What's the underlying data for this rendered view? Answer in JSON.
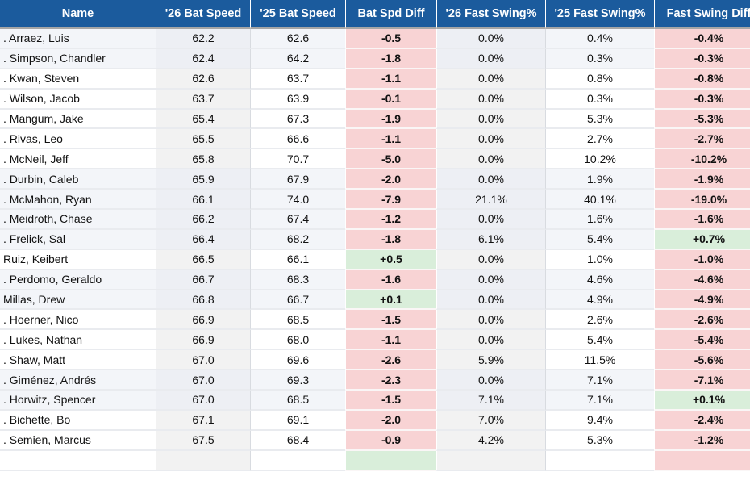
{
  "table": {
    "columns": [
      {
        "key": "name",
        "label": "Name"
      },
      {
        "key": "bs26",
        "label": "'26 Bat Speed"
      },
      {
        "key": "bs25",
        "label": "'25 Bat Speed"
      },
      {
        "key": "bsdiff",
        "label": "Bat Spd Diff"
      },
      {
        "key": "fs26",
        "label": "'26 Fast Swing%"
      },
      {
        "key": "fs25",
        "label": "'25 Fast Swing%"
      },
      {
        "key": "fsdiff",
        "label": "Fast Swing Diff"
      }
    ],
    "rows": [
      {
        "name": ". Arraez, Luis",
        "bs26": "62.2",
        "bs25": "62.6",
        "bsdiff": "-0.5",
        "fs26": "0.0%",
        "fs25": "0.4%",
        "fsdiff": "-0.4%",
        "shaded": true
      },
      {
        "name": ". Simpson, Chandler",
        "bs26": "62.4",
        "bs25": "64.2",
        "bsdiff": "-1.8",
        "fs26": "0.0%",
        "fs25": "0.3%",
        "fsdiff": "-0.3%",
        "shaded": true
      },
      {
        "name": ". Kwan, Steven",
        "bs26": "62.6",
        "bs25": "63.7",
        "bsdiff": "-1.1",
        "fs26": "0.0%",
        "fs25": "0.8%",
        "fsdiff": "-0.8%",
        "shaded": false
      },
      {
        "name": ". Wilson, Jacob",
        "bs26": "63.7",
        "bs25": "63.9",
        "bsdiff": "-0.1",
        "fs26": "0.0%",
        "fs25": "0.3%",
        "fsdiff": "-0.3%",
        "shaded": false
      },
      {
        "name": ". Mangum, Jake",
        "bs26": "65.4",
        "bs25": "67.3",
        "bsdiff": "-1.9",
        "fs26": "0.0%",
        "fs25": "5.3%",
        "fsdiff": "-5.3%",
        "shaded": false
      },
      {
        "name": ". Rivas, Leo",
        "bs26": "65.5",
        "bs25": "66.6",
        "bsdiff": "-1.1",
        "fs26": "0.0%",
        "fs25": "2.7%",
        "fsdiff": "-2.7%",
        "shaded": false
      },
      {
        "name": ". McNeil, Jeff",
        "bs26": "65.8",
        "bs25": "70.7",
        "bsdiff": "-5.0",
        "fs26": "0.0%",
        "fs25": "10.2%",
        "fsdiff": "-10.2%",
        "shaded": false
      },
      {
        "name": ". Durbin, Caleb",
        "bs26": "65.9",
        "bs25": "67.9",
        "bsdiff": "-2.0",
        "fs26": "0.0%",
        "fs25": "1.9%",
        "fsdiff": "-1.9%",
        "shaded": true
      },
      {
        "name": ". McMahon, Ryan",
        "bs26": "66.1",
        "bs25": "74.0",
        "bsdiff": "-7.9",
        "fs26": "21.1%",
        "fs25": "40.1%",
        "fsdiff": "-19.0%",
        "shaded": true
      },
      {
        "name": ". Meidroth, Chase",
        "bs26": "66.2",
        "bs25": "67.4",
        "bsdiff": "-1.2",
        "fs26": "0.0%",
        "fs25": "1.6%",
        "fsdiff": "-1.6%",
        "shaded": true
      },
      {
        "name": ". Frelick, Sal",
        "bs26": "66.4",
        "bs25": "68.2",
        "bsdiff": "-1.8",
        "fs26": "6.1%",
        "fs25": "5.4%",
        "fsdiff": "+0.7%",
        "shaded": true
      },
      {
        "name": "Ruiz, Keibert",
        "bs26": "66.5",
        "bs25": "66.1",
        "bsdiff": "+0.5",
        "fs26": "0.0%",
        "fs25": "1.0%",
        "fsdiff": "-1.0%",
        "shaded": false
      },
      {
        "name": ". Perdomo, Geraldo",
        "bs26": "66.7",
        "bs25": "68.3",
        "bsdiff": "-1.6",
        "fs26": "0.0%",
        "fs25": "4.6%",
        "fsdiff": "-4.6%",
        "shaded": true
      },
      {
        "name": "Millas, Drew",
        "bs26": "66.8",
        "bs25": "66.7",
        "bsdiff": "+0.1",
        "fs26": "0.0%",
        "fs25": "4.9%",
        "fsdiff": "-4.9%",
        "shaded": true
      },
      {
        "name": ". Hoerner, Nico",
        "bs26": "66.9",
        "bs25": "68.5",
        "bsdiff": "-1.5",
        "fs26": "0.0%",
        "fs25": "2.6%",
        "fsdiff": "-2.6%",
        "shaded": false
      },
      {
        "name": ". Lukes, Nathan",
        "bs26": "66.9",
        "bs25": "68.0",
        "bsdiff": "-1.1",
        "fs26": "0.0%",
        "fs25": "5.4%",
        "fsdiff": "-5.4%",
        "shaded": false
      },
      {
        "name": ". Shaw, Matt",
        "bs26": "67.0",
        "bs25": "69.6",
        "bsdiff": "-2.6",
        "fs26": "5.9%",
        "fs25": "11.5%",
        "fsdiff": "-5.6%",
        "shaded": false
      },
      {
        "name": ". Giménez, Andrés",
        "bs26": "67.0",
        "bs25": "69.3",
        "bsdiff": "-2.3",
        "fs26": "0.0%",
        "fs25": "7.1%",
        "fsdiff": "-7.1%",
        "shaded": true
      },
      {
        "name": ". Horwitz, Spencer",
        "bs26": "67.0",
        "bs25": "68.5",
        "bsdiff": "-1.5",
        "fs26": "7.1%",
        "fs25": "7.1%",
        "fsdiff": "+0.1%",
        "shaded": true
      },
      {
        "name": ". Bichette, Bo",
        "bs26": "67.1",
        "bs25": "69.1",
        "bsdiff": "-2.0",
        "fs26": "7.0%",
        "fs25": "9.4%",
        "fsdiff": "-2.4%",
        "shaded": false
      },
      {
        "name": ". Semien, Marcus",
        "bs26": "67.5",
        "bs25": "68.4",
        "bsdiff": "-0.9",
        "fs26": "4.2%",
        "fs25": "5.3%",
        "fsdiff": "-1.2%",
        "shaded": false
      }
    ],
    "partial_row": {
      "name": "",
      "bs26": "",
      "bs25": "",
      "bsdiff": "",
      "fs26": "",
      "fs25": "",
      "fsdiff": "",
      "bsdiff_state": "pos",
      "fsdiff_state": "neg",
      "shaded": false
    }
  },
  "colors": {
    "header_bg": "#1b5b9d",
    "header_text": "#ffffff",
    "header_border": "#a6a6a6",
    "shaded_row": "#f3f5f9",
    "sorted_col": "#f2f2f2",
    "negative": "#f8d3d4",
    "positive": "#d9eeda"
  }
}
